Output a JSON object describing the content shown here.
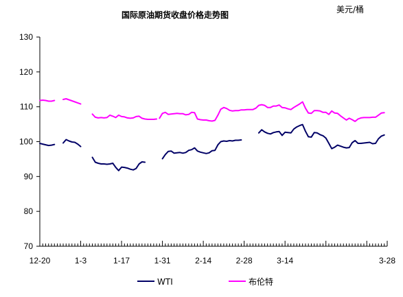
{
  "chart_data": {
    "type": "line",
    "title": "国际原油期货收盘价格走势图",
    "unit_label": "美元/桶",
    "xlabel": "",
    "ylabel": "",
    "ylim": [
      70,
      130
    ],
    "y_ticks": [
      "70",
      "80",
      "90",
      "100",
      "110",
      "120",
      "130"
    ],
    "x_ticks": [
      "12-20",
      "1-3",
      "1-17",
      "1-31",
      "2-14",
      "2-28",
      "3-14",
      "3-28"
    ],
    "grid": false,
    "legend_position": "bottom",
    "colors": {
      "WTI": "#000066",
      "布伦特": "#ff00ff"
    },
    "series": [
      {
        "name": "WTI",
        "segments": [
          [
            [
              0,
              99.5
            ],
            [
              1,
              99.3
            ],
            [
              2,
              99.1
            ],
            [
              3,
              98.9
            ],
            [
              4,
              99.0
            ],
            [
              5,
              99.2
            ]
          ],
          [
            [
              8,
              99.6
            ],
            [
              9,
              100.6
            ],
            [
              10,
              100.2
            ],
            [
              11,
              99.9
            ],
            [
              12,
              99.8
            ],
            [
              13,
              99.3
            ],
            [
              14,
              98.6
            ]
          ],
          [
            [
              18,
              95.5
            ],
            [
              19,
              94.1
            ],
            [
              20,
              93.8
            ],
            [
              21,
              93.6
            ],
            [
              22,
              93.6
            ],
            [
              23,
              93.5
            ],
            [
              24,
              93.6
            ],
            [
              25,
              93.8
            ],
            [
              26,
              92.6
            ],
            [
              27,
              91.7
            ],
            [
              28,
              92.7
            ],
            [
              29,
              92.6
            ],
            [
              30,
              92.4
            ],
            [
              31,
              92.1
            ],
            [
              32,
              91.9
            ],
            [
              33,
              92.3
            ],
            [
              34,
              93.6
            ],
            [
              35,
              94.2
            ],
            [
              36,
              94.1
            ]
          ],
          [
            [
              42,
              95.1
            ],
            [
              43,
              96.3
            ],
            [
              44,
              97.2
            ],
            [
              45,
              97.3
            ],
            [
              46,
              96.7
            ],
            [
              47,
              96.8
            ],
            [
              48,
              96.9
            ],
            [
              49,
              96.7
            ],
            [
              50,
              96.9
            ],
            [
              51,
              97.5
            ],
            [
              52,
              97.7
            ],
            [
              53,
              98.2
            ],
            [
              54,
              97.3
            ],
            [
              55,
              97.0
            ],
            [
              56,
              96.8
            ],
            [
              57,
              96.6
            ],
            [
              58,
              96.8
            ],
            [
              59,
              97.4
            ],
            [
              60,
              97.5
            ],
            [
              61,
              99.1
            ],
            [
              62,
              100.0
            ],
            [
              63,
              100.2
            ],
            [
              64,
              100.1
            ],
            [
              65,
              100.3
            ],
            [
              66,
              100.2
            ],
            [
              67,
              100.4
            ],
            [
              68,
              100.4
            ],
            [
              69,
              100.5
            ]
          ],
          [
            [
              75,
              102.5
            ],
            [
              76,
              103.4
            ],
            [
              77,
              102.8
            ],
            [
              78,
              102.4
            ],
            [
              79,
              102.2
            ],
            [
              80,
              102.6
            ],
            [
              81,
              102.8
            ],
            [
              82,
              102.9
            ],
            [
              83,
              101.8
            ],
            [
              84,
              102.7
            ],
            [
              85,
              102.6
            ],
            [
              86,
              102.5
            ],
            [
              87,
              103.6
            ],
            [
              88,
              104.2
            ],
            [
              89,
              104.6
            ],
            [
              90,
              104.9
            ],
            [
              91,
              103.0
            ],
            [
              92,
              101.4
            ],
            [
              93,
              101.3
            ],
            [
              94,
              102.6
            ],
            [
              95,
              102.5
            ],
            [
              96,
              102.0
            ],
            [
              97,
              101.7
            ],
            [
              98,
              101.0
            ],
            [
              99,
              99.5
            ],
            [
              100,
              98.0
            ],
            [
              101,
              98.4
            ],
            [
              102,
              99.0
            ],
            [
              103,
              98.7
            ],
            [
              104,
              98.4
            ],
            [
              105,
              98.2
            ],
            [
              106,
              98.3
            ],
            [
              107,
              99.7
            ],
            [
              108,
              100.3
            ],
            [
              109,
              99.5
            ],
            [
              110,
              99.5
            ],
            [
              111,
              99.6
            ],
            [
              112,
              99.7
            ],
            [
              113,
              99.8
            ],
            [
              114,
              99.4
            ],
            [
              115,
              99.5
            ],
            [
              116,
              100.8
            ],
            [
              117,
              101.6
            ],
            [
              118,
              101.9
            ]
          ]
        ]
      },
      {
        "name": "布伦特",
        "segments": [
          [
            [
              0,
              111.8
            ],
            [
              1,
              111.9
            ],
            [
              2,
              111.8
            ],
            [
              3,
              111.6
            ],
            [
              4,
              111.6
            ],
            [
              5,
              111.8
            ]
          ],
          [
            [
              8,
              112.1
            ],
            [
              9,
              112.3
            ],
            [
              10,
              112.0
            ],
            [
              11,
              111.7
            ],
            [
              12,
              111.4
            ],
            [
              13,
              111.1
            ],
            [
              14,
              110.8
            ]
          ],
          [
            [
              18,
              107.9
            ],
            [
              19,
              107.0
            ],
            [
              20,
              106.8
            ],
            [
              21,
              106.9
            ],
            [
              22,
              106.8
            ],
            [
              23,
              106.9
            ],
            [
              24,
              107.6
            ],
            [
              25,
              107.3
            ],
            [
              26,
              106.9
            ],
            [
              27,
              107.6
            ],
            [
              28,
              107.2
            ],
            [
              29,
              107.1
            ],
            [
              30,
              106.8
            ],
            [
              31,
              106.7
            ],
            [
              32,
              106.8
            ],
            [
              33,
              107.2
            ],
            [
              34,
              107.3
            ],
            [
              35,
              106.7
            ],
            [
              36,
              106.5
            ],
            [
              37,
              106.4
            ],
            [
              38,
              106.4
            ],
            [
              39,
              106.4
            ],
            [
              40,
              106.5
            ]
          ],
          [
            [
              41,
              106.7
            ],
            [
              42,
              108.1
            ],
            [
              43,
              108.4
            ],
            [
              44,
              107.8
            ],
            [
              45,
              107.9
            ],
            [
              46,
              108.0
            ],
            [
              47,
              108.1
            ],
            [
              48,
              108.0
            ],
            [
              49,
              108.0
            ],
            [
              50,
              107.7
            ],
            [
              51,
              107.8
            ],
            [
              52,
              108.4
            ],
            [
              53,
              108.3
            ],
            [
              54,
              106.5
            ],
            [
              55,
              106.3
            ],
            [
              56,
              106.2
            ],
            [
              57,
              106.2
            ],
            [
              58,
              106.0
            ],
            [
              59,
              105.9
            ],
            [
              60,
              106.1
            ],
            [
              61,
              107.6
            ],
            [
              62,
              109.3
            ],
            [
              63,
              109.8
            ],
            [
              64,
              109.5
            ],
            [
              65,
              109.0
            ],
            [
              66,
              108.8
            ],
            [
              67,
              108.9
            ],
            [
              68,
              108.9
            ],
            [
              69,
              109.1
            ],
            [
              70,
              109.1
            ],
            [
              71,
              109.2
            ],
            [
              72,
              109.2
            ],
            [
              73,
              109.2
            ],
            [
              74,
              109.6
            ],
            [
              75,
              110.4
            ],
            [
              76,
              110.6
            ],
            [
              77,
              110.4
            ],
            [
              78,
              109.8
            ],
            [
              79,
              109.8
            ],
            [
              80,
              110.2
            ],
            [
              81,
              110.2
            ],
            [
              82,
              110.5
            ],
            [
              83,
              109.8
            ],
            [
              84,
              109.7
            ],
            [
              85,
              109.4
            ],
            [
              86,
              109.2
            ],
            [
              87,
              109.8
            ],
            [
              88,
              110.3
            ],
            [
              89,
              110.8
            ],
            [
              90,
              111.4
            ],
            [
              91,
              109.6
            ],
            [
              92,
              108.2
            ],
            [
              93,
              108.1
            ],
            [
              94,
              108.9
            ],
            [
              95,
              108.9
            ],
            [
              96,
              108.8
            ],
            [
              97,
              108.4
            ],
            [
              98,
              108.4
            ],
            [
              99,
              107.8
            ],
            [
              100,
              108.8
            ],
            [
              101,
              108.2
            ],
            [
              102,
              108.1
            ],
            [
              103,
              107.4
            ],
            [
              104,
              106.8
            ],
            [
              105,
              106.2
            ],
            [
              106,
              106.7
            ],
            [
              107,
              106.3
            ],
            [
              108,
              105.8
            ],
            [
              109,
              106.5
            ],
            [
              110,
              106.8
            ],
            [
              111,
              106.9
            ],
            [
              112,
              106.9
            ],
            [
              113,
              106.9
            ],
            [
              114,
              107.0
            ],
            [
              115,
              107.0
            ],
            [
              116,
              107.6
            ],
            [
              117,
              108.2
            ],
            [
              118,
              108.3
            ]
          ]
        ]
      }
    ]
  }
}
